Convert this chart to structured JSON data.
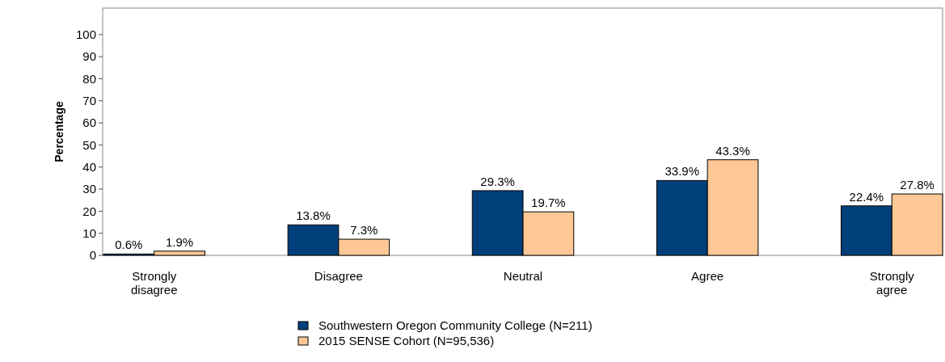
{
  "chart_data": {
    "type": "bar",
    "ylabel": "Percentage",
    "categories": [
      "Strongly\ndisagree",
      "Disagree",
      "Neutral",
      "Agree",
      "Strongly\nagree"
    ],
    "series": [
      {
        "name": "Southwestern Oregon Community College (N=211)",
        "color": "#003f7a",
        "values": [
          0.6,
          13.8,
          29.3,
          33.9,
          22.4
        ],
        "value_labels": [
          "0.6%",
          "13.8%",
          "29.3%",
          "33.9%",
          "22.4%"
        ]
      },
      {
        "name": "2015 SENSE Cohort (N=95,536)",
        "color": "#fdc896",
        "values": [
          1.9,
          7.3,
          19.7,
          43.3,
          27.8
        ],
        "value_labels": [
          "1.9%",
          "7.3%",
          "19.7%",
          "43.3%",
          "27.8%"
        ]
      }
    ],
    "ylim": [
      0,
      112
    ],
    "yticks": [
      0,
      10,
      20,
      30,
      40,
      50,
      60,
      70,
      80,
      90,
      100
    ],
    "grid": false,
    "legend": "bottom"
  }
}
